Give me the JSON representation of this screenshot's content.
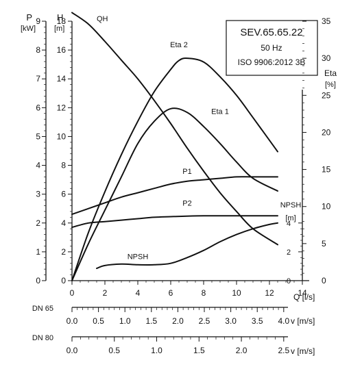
{
  "chart_data": {
    "type": "line",
    "info_box": [
      "SEV.65.65.22",
      "50 Hz",
      "ISO 9906:2012 3B"
    ],
    "axes": {
      "p": {
        "title": "P",
        "unit": "[kW]",
        "range": [
          0,
          9
        ],
        "ticks": [
          "0",
          "1",
          "2",
          "3",
          "4",
          "5",
          "6",
          "7",
          "8",
          "9"
        ]
      },
      "h": {
        "title": "H",
        "unit": "[m]",
        "range": [
          0,
          18
        ],
        "ticks": [
          "0",
          "2",
          "4",
          "6",
          "8",
          "10",
          "12",
          "14",
          "16",
          "18"
        ]
      },
      "eta": {
        "title": "Eta",
        "unit": "[%]",
        "range": [
          0,
          35
        ],
        "ticks": [
          "0",
          "5",
          "10",
          "15",
          "20",
          "25",
          "30",
          "35"
        ]
      },
      "npsh": {
        "title": "NPSH",
        "unit": "[m]",
        "range": [
          0,
          15
        ],
        "ticks": [
          "0",
          "2",
          "4"
        ]
      },
      "q": {
        "unit": "Q [l/s]",
        "range": [
          0,
          14
        ],
        "ticks": [
          "0",
          "2",
          "4",
          "6",
          "8",
          "10",
          "12",
          "14"
        ]
      }
    },
    "velocity_scales": [
      {
        "label": "DN 65",
        "ticks": [
          "0.0",
          "0.5",
          "1.0",
          "1.5",
          "2.0",
          "2.5",
          "3.0",
          "3.5",
          "4.0"
        ],
        "max": 4.0,
        "unit": "v [m/s]"
      },
      {
        "label": "DN 80",
        "ticks": [
          "0.0",
          "0.5",
          "1.0",
          "1.5",
          "2.0",
          "2.5"
        ],
        "max": 2.5,
        "unit": "v [m/s]"
      }
    ],
    "series": [
      {
        "name": "QH",
        "axis": "h",
        "x": [
          0,
          1,
          2,
          3,
          4,
          5,
          6,
          7,
          8,
          9,
          10,
          11,
          12.5
        ],
        "y": [
          18.6,
          17.8,
          16.6,
          15.3,
          14.0,
          12.5,
          10.9,
          9.2,
          7.6,
          6.1,
          4.8,
          3.6,
          2.5
        ]
      },
      {
        "name": "Eta 2",
        "axis": "eta",
        "x": [
          0,
          1,
          2,
          3,
          4,
          5,
          6,
          6.5,
          7,
          8,
          9,
          10,
          11,
          12.5
        ],
        "y": [
          0,
          6.5,
          12,
          17,
          21.5,
          25.5,
          28.5,
          29.7,
          30,
          29.5,
          27.5,
          25,
          22,
          17.4
        ]
      },
      {
        "name": "Eta 1",
        "axis": "eta",
        "x": [
          0,
          1,
          2,
          3,
          4,
          5,
          6,
          7,
          8,
          9,
          10,
          11,
          12.5
        ],
        "y": [
          0,
          5,
          9.5,
          14,
          18.5,
          21.5,
          23.2,
          22.7,
          20.8,
          18.5,
          16,
          13.8,
          12.1
        ]
      },
      {
        "name": "P1",
        "axis": "p",
        "x": [
          0,
          1,
          2,
          3,
          4,
          5,
          6,
          7,
          8,
          9,
          10,
          11,
          12.5
        ],
        "y": [
          2.3,
          2.5,
          2.7,
          2.9,
          3.05,
          3.2,
          3.35,
          3.45,
          3.5,
          3.55,
          3.6,
          3.6,
          3.6
        ]
      },
      {
        "name": "P2",
        "axis": "p",
        "x": [
          0,
          1,
          2,
          3,
          4,
          5,
          6,
          7,
          8,
          9,
          10,
          11,
          12.5
        ],
        "y": [
          1.85,
          2.0,
          2.05,
          2.1,
          2.15,
          2.2,
          2.22,
          2.24,
          2.25,
          2.25,
          2.25,
          2.25,
          2.25
        ]
      },
      {
        "name": "NPSH",
        "axis": "h",
        "x": [
          1.5,
          2,
          3,
          4,
          5,
          6,
          7,
          8,
          9,
          10,
          11,
          12,
          12.5
        ],
        "y": [
          0.85,
          1.05,
          1.15,
          1.1,
          1.1,
          1.2,
          1.6,
          2.1,
          2.7,
          3.2,
          3.6,
          3.9,
          4.0
        ]
      }
    ]
  }
}
